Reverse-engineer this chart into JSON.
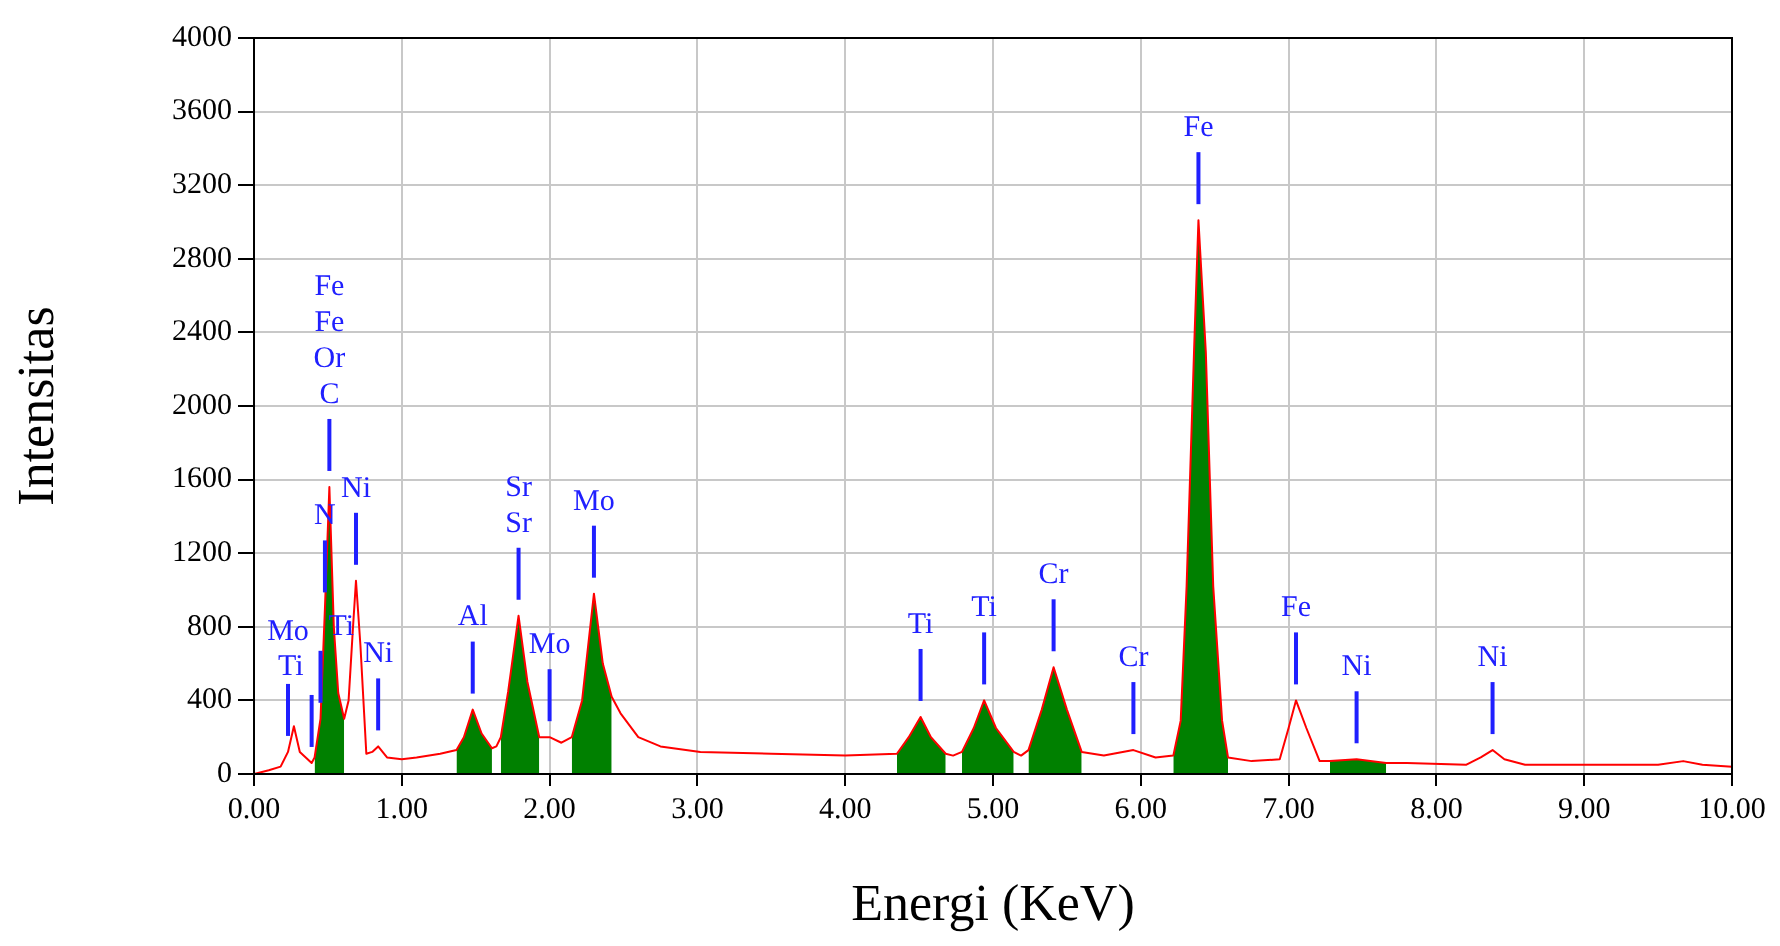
{
  "chart_data": {
    "type": "line",
    "xlabel": "Energi (KeV)",
    "ylabel": "Intensitas",
    "x": [
      0.0,
      0.1,
      0.18,
      0.23,
      0.27,
      0.31,
      0.35,
      0.39,
      0.41,
      0.45,
      0.48,
      0.51,
      0.54,
      0.57,
      0.61,
      0.64,
      0.67,
      0.69,
      0.72,
      0.76,
      0.8,
      0.84,
      0.9,
      1.0,
      1.1,
      1.26,
      1.37,
      1.42,
      1.48,
      1.54,
      1.61,
      1.64,
      1.67,
      1.72,
      1.79,
      1.85,
      1.93,
      2.0,
      2.08,
      2.15,
      2.22,
      2.3,
      2.36,
      2.42,
      2.48,
      2.6,
      2.75,
      3.02,
      3.5,
      4.0,
      4.35,
      4.43,
      4.51,
      4.58,
      4.68,
      4.73,
      4.79,
      4.87,
      4.94,
      5.02,
      5.14,
      5.19,
      5.24,
      5.33,
      5.41,
      5.5,
      5.6,
      5.75,
      5.95,
      6.1,
      6.22,
      6.27,
      6.31,
      6.36,
      6.39,
      6.44,
      6.49,
      6.55,
      6.59,
      6.75,
      6.94,
      7.0,
      7.05,
      7.12,
      7.21,
      7.28,
      7.46,
      7.66,
      7.8,
      8.2,
      8.3,
      8.38,
      8.46,
      8.6,
      9.0,
      9.5,
      9.67,
      9.8,
      10.0
    ],
    "series": [
      {
        "type": "area",
        "color": "#008000",
        "values": [
          null,
          null,
          null,
          null,
          null,
          null,
          null,
          null,
          90,
          300,
          900,
          1560,
          800,
          440,
          300,
          null,
          null,
          null,
          null,
          null,
          null,
          null,
          null,
          null,
          null,
          null,
          130,
          200,
          350,
          220,
          140,
          null,
          200,
          450,
          860,
          500,
          200,
          null,
          null,
          200,
          400,
          980,
          600,
          420,
          null,
          null,
          null,
          null,
          null,
          null,
          110,
          200,
          310,
          200,
          110,
          null,
          120,
          250,
          400,
          250,
          120,
          null,
          130,
          350,
          580,
          350,
          120,
          null,
          null,
          null,
          100,
          290,
          1020,
          2290,
          3010,
          2290,
          1020,
          290,
          90,
          null,
          null,
          null,
          null,
          null,
          null,
          70,
          80,
          60,
          null,
          null,
          null,
          null,
          null,
          null,
          null,
          null,
          null,
          null,
          null
        ]
      },
      {
        "color": "#ff0000",
        "values": [
          0,
          20,
          40,
          120,
          260,
          120,
          90,
          60,
          90,
          300,
          900,
          1560,
          800,
          440,
          300,
          400,
          800,
          1050,
          700,
          110,
          120,
          150,
          90,
          80,
          90,
          110,
          130,
          200,
          350,
          220,
          140,
          150,
          200,
          450,
          860,
          500,
          200,
          200,
          170,
          200,
          400,
          980,
          600,
          420,
          330,
          200,
          150,
          120,
          110,
          100,
          110,
          200,
          310,
          200,
          110,
          100,
          120,
          250,
          400,
          250,
          120,
          100,
          130,
          350,
          580,
          350,
          120,
          100,
          130,
          90,
          100,
          290,
          1020,
          2290,
          3010,
          2290,
          1020,
          290,
          90,
          70,
          80,
          250,
          400,
          250,
          70,
          70,
          80,
          60,
          60,
          50,
          90,
          130,
          80,
          50,
          50,
          50,
          70,
          50,
          40
        ]
      }
    ],
    "xlim": [
      0,
      10
    ],
    "xticks": [
      {
        "value": 0,
        "label": "0.00"
      },
      {
        "value": 1,
        "label": "1.00"
      },
      {
        "value": 2,
        "label": "2.00"
      },
      {
        "value": 3,
        "label": "3.00"
      },
      {
        "value": 4,
        "label": "4.00"
      },
      {
        "value": 5,
        "label": "5.00"
      },
      {
        "value": 6,
        "label": "6.00"
      },
      {
        "value": 7,
        "label": "7.00"
      },
      {
        "value": 8,
        "label": "8.00"
      },
      {
        "value": 9,
        "label": "9.00"
      },
      {
        "value": 10,
        "label": "10.00"
      }
    ],
    "ylim": [
      0,
      4000
    ],
    "yticks": [
      0,
      400,
      800,
      1200,
      1600,
      2000,
      2400,
      2800,
      3200,
      3600,
      4000
    ],
    "grid": true,
    "legend": false,
    "marker": "none",
    "line_style": "solid",
    "annotations": [
      {
        "text": "Mo",
        "x": 0.23,
        "y": 120
      },
      {
        "text": "Ti",
        "x": 0.39,
        "y": 60
      },
      {
        "text": "Ti",
        "x": 0.45,
        "y": 300
      },
      {
        "text": "N",
        "x": 0.48,
        "y": 900
      },
      {
        "text": "C",
        "x": 0.51,
        "y": 1560
      },
      "Or",
      "Fe",
      "Fe",
      {
        "text": "Ni",
        "x": 0.69,
        "y": 1050
      },
      {
        "text": "Ni",
        "x": 0.84,
        "y": 150
      },
      {
        "text": "Al",
        "x": 1.48,
        "y": 350
      },
      {
        "text": "Sr",
        "x": 1.79,
        "y": 860
      },
      "Sr",
      {
        "text": "Mo",
        "x": 2.0,
        "y": 200
      },
      {
        "text": "Mo",
        "x": 2.3,
        "y": 980
      },
      {
        "text": "Ti",
        "x": 4.51,
        "y": 310
      },
      {
        "text": "Ti",
        "x": 4.94,
        "y": 400
      },
      {
        "text": "Cr",
        "x": 5.41,
        "y": 580
      },
      {
        "text": "Cr",
        "x": 5.95,
        "y": 130
      },
      {
        "text": "Fe",
        "x": 6.39,
        "y": 3010
      },
      {
        "text": "Fe",
        "x": 7.05,
        "y": 400
      },
      {
        "text": "Ni",
        "x": 7.46,
        "y": 80
      },
      {
        "text": "Ni",
        "x": 8.38,
        "y": 130
      }
    ]
  }
}
